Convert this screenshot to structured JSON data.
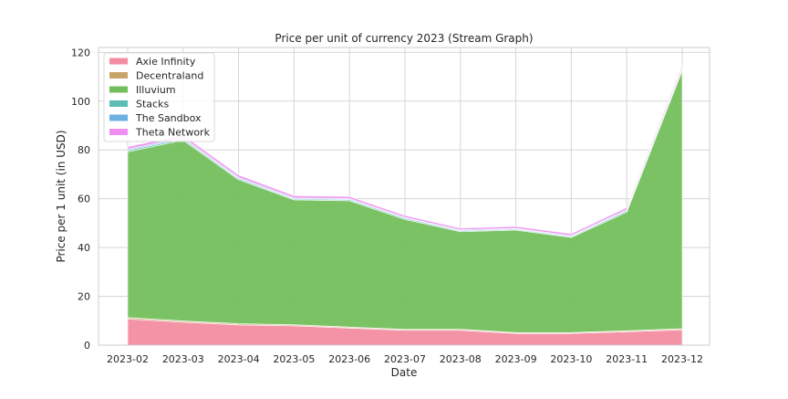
{
  "chart_data": {
    "type": "area",
    "stacked": true,
    "title": "Price per unit of currency 2023 (Stream Graph)",
    "xlabel": "Date",
    "ylabel": "Price per 1 unit (in USD)",
    "x": [
      "2023-02",
      "2023-03",
      "2023-04",
      "2023-05",
      "2023-06",
      "2023-07",
      "2023-08",
      "2023-09",
      "2023-10",
      "2023-11",
      "2023-12"
    ],
    "ylim": [
      0,
      122
    ],
    "yticks": [
      0,
      20,
      40,
      60,
      80,
      100,
      120
    ],
    "grid": true,
    "legend_position": "upper-left",
    "series": [
      {
        "name": "Axie Infinity",
        "color": "#f38ca1",
        "values": [
          10.7,
          9.4,
          8.3,
          7.9,
          7.0,
          6.1,
          6.1,
          4.8,
          4.8,
          5.5,
          6.3
        ]
      },
      {
        "name": "Decentraland",
        "color": "#c9a46a",
        "values": [
          0.6,
          0.5,
          0.5,
          0.45,
          0.4,
          0.4,
          0.4,
          0.35,
          0.35,
          0.4,
          0.45
        ]
      },
      {
        "name": "Illuvium",
        "color": "#73bf5b",
        "values": [
          67.9,
          74.1,
          59.0,
          51.2,
          51.8,
          45.0,
          40.0,
          42.0,
          39.0,
          48.6,
          105.8
        ]
      },
      {
        "name": "Stacks",
        "color": "#5dbdb5",
        "values": [
          0.6,
          0.6,
          0.5,
          0.4,
          0.5,
          0.5,
          0.4,
          0.4,
          0.4,
          0.6,
          0.8
        ]
      },
      {
        "name": "The Sandbox",
        "color": "#6cb0e4",
        "values": [
          0.5,
          0.45,
          0.45,
          0.4,
          0.35,
          0.35,
          0.35,
          0.3,
          0.3,
          0.4,
          0.45
        ]
      },
      {
        "name": "Theta Network",
        "color": "#ef8ff0",
        "values": [
          1.0,
          1.0,
          1.0,
          0.9,
          0.85,
          0.8,
          0.7,
          0.8,
          0.8,
          0.9,
          1.0
        ]
      }
    ]
  }
}
